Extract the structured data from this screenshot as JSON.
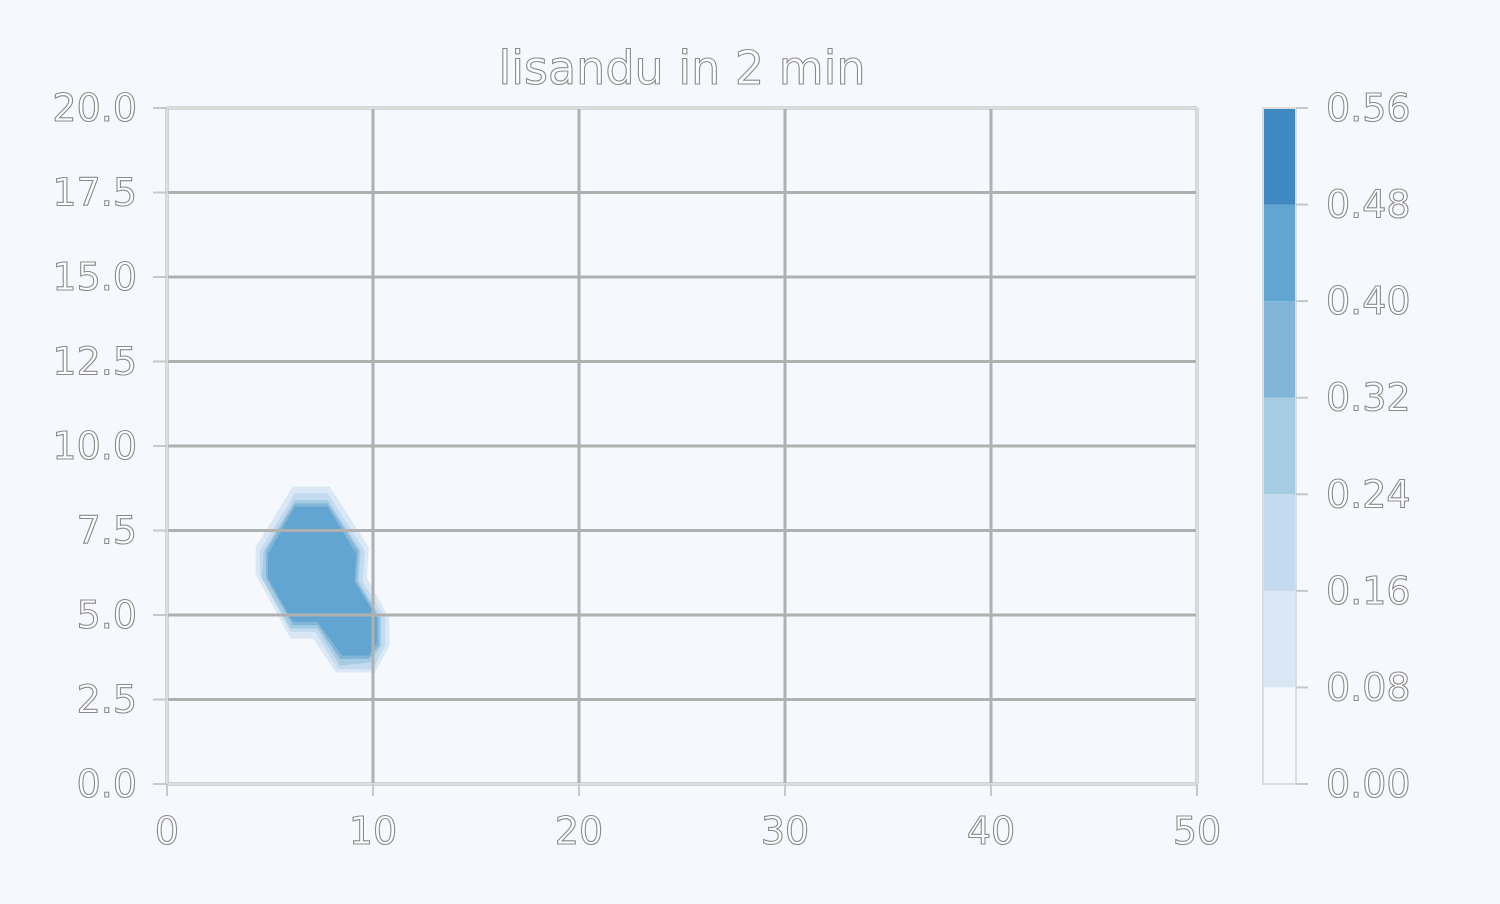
{
  "chart_data": {
    "type": "heatmap",
    "subtype": "filled-contour",
    "title": "lisandu in 2 min",
    "xlabel": "",
    "ylabel": "",
    "xlim": [
      0,
      50
    ],
    "ylim": [
      0,
      20
    ],
    "x_ticks": [
      "0",
      "10",
      "20",
      "30",
      "40",
      "50"
    ],
    "y_ticks": [
      "0.0",
      "2.5",
      "5.0",
      "7.5",
      "10.0",
      "12.5",
      "15.0",
      "17.5",
      "20.0"
    ],
    "grid": true,
    "colormap": "Blues",
    "colorbar": {
      "levels": [
        0.0,
        0.08,
        0.16,
        0.24,
        0.32,
        0.4,
        0.48,
        0.56
      ],
      "tick_labels": [
        "0.00",
        "0.08",
        "0.16",
        "0.24",
        "0.32",
        "0.40",
        "0.48",
        "0.56"
      ],
      "colors": [
        "#f5f9fd",
        "#dae8f5",
        "#c4daee",
        "#a6cce4",
        "#83b5d9",
        "#62a5d1",
        "#3e89c2"
      ]
    },
    "regions": [
      {
        "level_min": 0.08,
        "color": "#dae8f5",
        "polygon": [
          [
            6.1,
            8.8
          ],
          [
            7.9,
            8.8
          ],
          [
            9.8,
            7.0
          ],
          [
            9.7,
            6.1
          ],
          [
            10.8,
            4.9
          ],
          [
            10.8,
            4.1
          ],
          [
            10.1,
            3.3
          ],
          [
            8.2,
            3.3
          ],
          [
            7.1,
            4.3
          ],
          [
            6.0,
            4.3
          ],
          [
            4.3,
            6.2
          ],
          [
            4.3,
            7.0
          ]
        ]
      },
      {
        "level_min": 0.16,
        "color": "#c4daee",
        "polygon": [
          [
            6.2,
            8.6
          ],
          [
            7.8,
            8.6
          ],
          [
            9.6,
            6.9
          ],
          [
            9.5,
            6.0
          ],
          [
            10.6,
            4.9
          ],
          [
            10.6,
            4.1
          ],
          [
            10.0,
            3.4
          ],
          [
            8.3,
            3.4
          ],
          [
            7.2,
            4.5
          ],
          [
            6.0,
            4.5
          ],
          [
            4.5,
            6.2
          ],
          [
            4.5,
            6.9
          ]
        ]
      },
      {
        "level_min": 0.24,
        "color": "#a6cce4",
        "polygon": [
          [
            6.2,
            8.4
          ],
          [
            7.8,
            8.4
          ],
          [
            9.4,
            6.9
          ],
          [
            9.3,
            6.0
          ],
          [
            10.4,
            4.9
          ],
          [
            10.4,
            4.1
          ],
          [
            9.9,
            3.6
          ],
          [
            8.4,
            3.5
          ],
          [
            7.3,
            4.6
          ],
          [
            6.0,
            4.6
          ],
          [
            4.6,
            6.1
          ],
          [
            4.7,
            6.9
          ]
        ]
      },
      {
        "level_min": 0.32,
        "color": "#83b5d9",
        "polygon": [
          [
            6.2,
            8.3
          ],
          [
            7.8,
            8.3
          ],
          [
            9.3,
            6.9
          ],
          [
            9.2,
            6.0
          ],
          [
            10.3,
            4.9
          ],
          [
            10.3,
            4.1
          ],
          [
            9.8,
            3.7
          ],
          [
            8.4,
            3.7
          ],
          [
            7.3,
            4.7
          ],
          [
            6.1,
            4.7
          ],
          [
            4.8,
            6.1
          ],
          [
            4.8,
            6.9
          ]
        ]
      },
      {
        "level_min": 0.4,
        "color": "#62a5d1",
        "polygon": [
          [
            6.2,
            8.2
          ],
          [
            7.8,
            8.2
          ],
          [
            9.2,
            6.8
          ],
          [
            9.1,
            6.0
          ],
          [
            10.2,
            4.9
          ],
          [
            10.2,
            4.2
          ],
          [
            9.8,
            3.8
          ],
          [
            8.5,
            3.8
          ],
          [
            7.3,
            4.8
          ],
          [
            6.1,
            4.8
          ],
          [
            4.9,
            6.1
          ],
          [
            4.9,
            6.8
          ]
        ]
      }
    ]
  }
}
